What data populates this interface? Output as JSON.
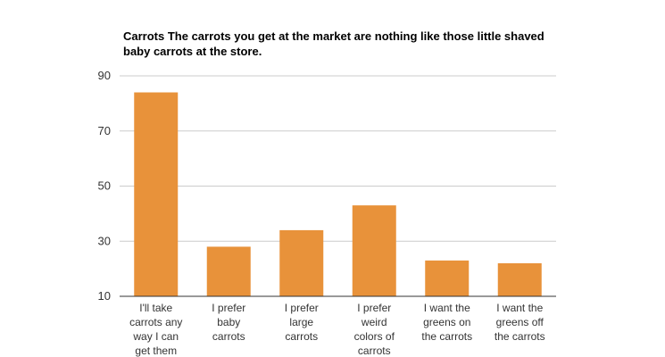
{
  "chart_data": {
    "type": "bar",
    "title": "Carrots The carrots you get at the market are nothing like those little shaved baby carrots at the store.",
    "categories": [
      "I'll take carrots any way I can get them",
      "I prefer baby carrots",
      "I prefer large carrots",
      "I prefer weird colors of carrots",
      "I want the greens on the carrots",
      "I want the greens off the carrots"
    ],
    "category_lines": [
      [
        "I'll take",
        "carrots any",
        "way I can",
        "get them"
      ],
      [
        "I prefer",
        "baby",
        "carrots"
      ],
      [
        "I prefer",
        "large",
        "carrots"
      ],
      [
        "I prefer",
        "weird",
        "colors of",
        "carrots"
      ],
      [
        "I want the",
        "greens on",
        "the carrots"
      ],
      [
        "I want the",
        "greens off",
        "the carrots"
      ]
    ],
    "values": [
      84,
      28,
      34,
      43,
      23,
      22
    ],
    "yticks": [
      10,
      30,
      50,
      70,
      90
    ],
    "ylim": [
      10,
      90
    ],
    "xlabel": "",
    "ylabel": "",
    "grid": true,
    "bar_color": "#E8923A",
    "grid_color": "#CCCCCC",
    "axis_color": "#333333"
  }
}
